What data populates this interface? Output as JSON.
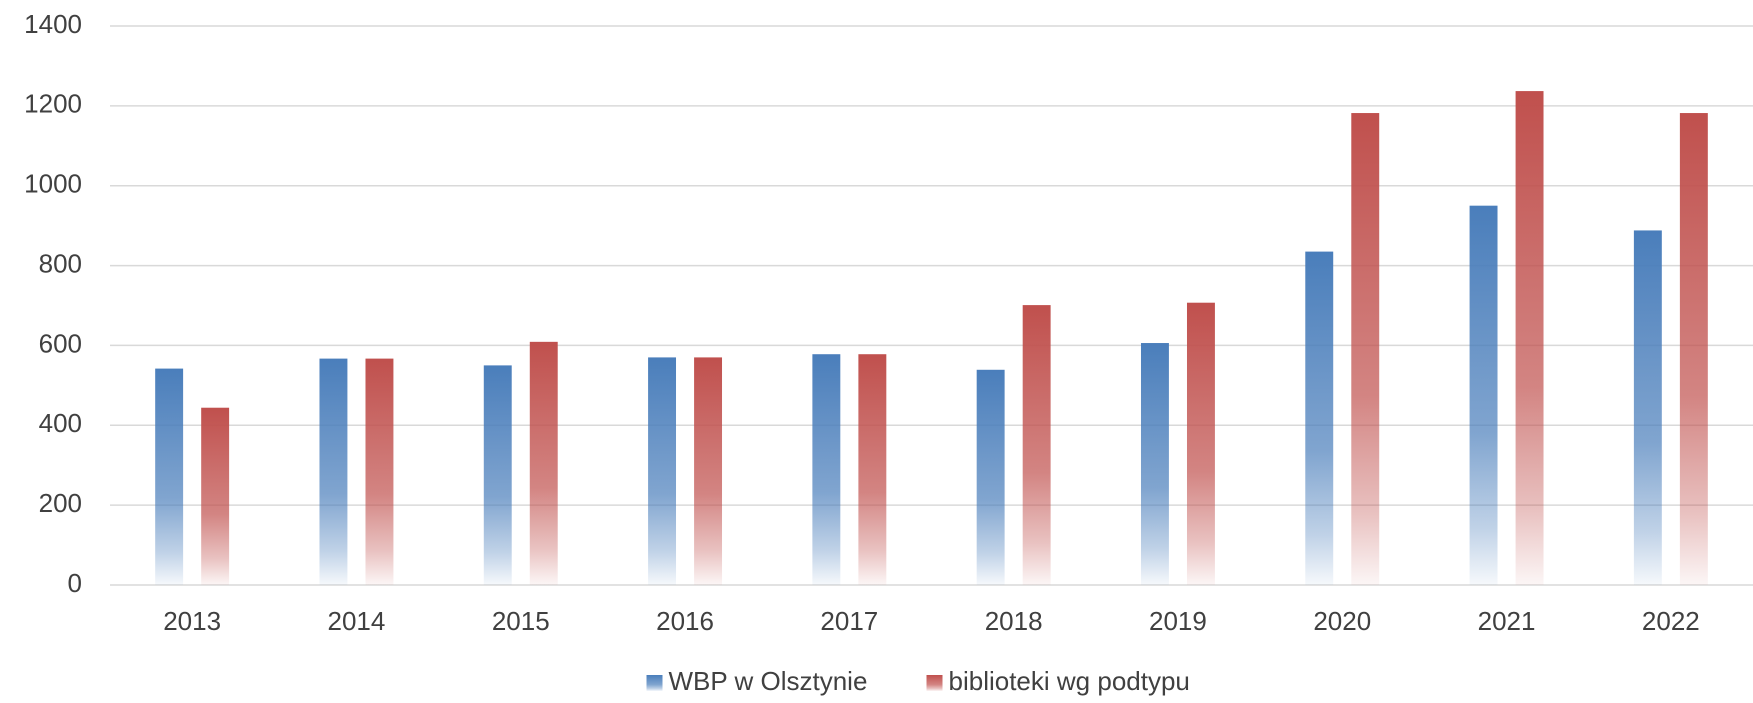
{
  "chart_data": {
    "type": "bar",
    "categories": [
      "2013",
      "2014",
      "2015",
      "2016",
      "2017",
      "2018",
      "2019",
      "2020",
      "2021",
      "2022"
    ],
    "series": [
      {
        "name": "WBP w Olsztynie",
        "color": "#4a7ebb",
        "values": [
          542,
          567,
          550,
          570,
          578,
          539,
          606,
          835,
          950,
          888
        ]
      },
      {
        "name": "biblioteki wg podtypu",
        "color": "#c0504d",
        "values": [
          444,
          567,
          609,
          570,
          578,
          701,
          707,
          1182,
          1237,
          1182
        ]
      }
    ],
    "ylim": [
      0,
      1400
    ],
    "yticks": [
      0,
      200,
      400,
      600,
      800,
      1000,
      1200,
      1400
    ],
    "grid": true,
    "legend": "bottom"
  }
}
